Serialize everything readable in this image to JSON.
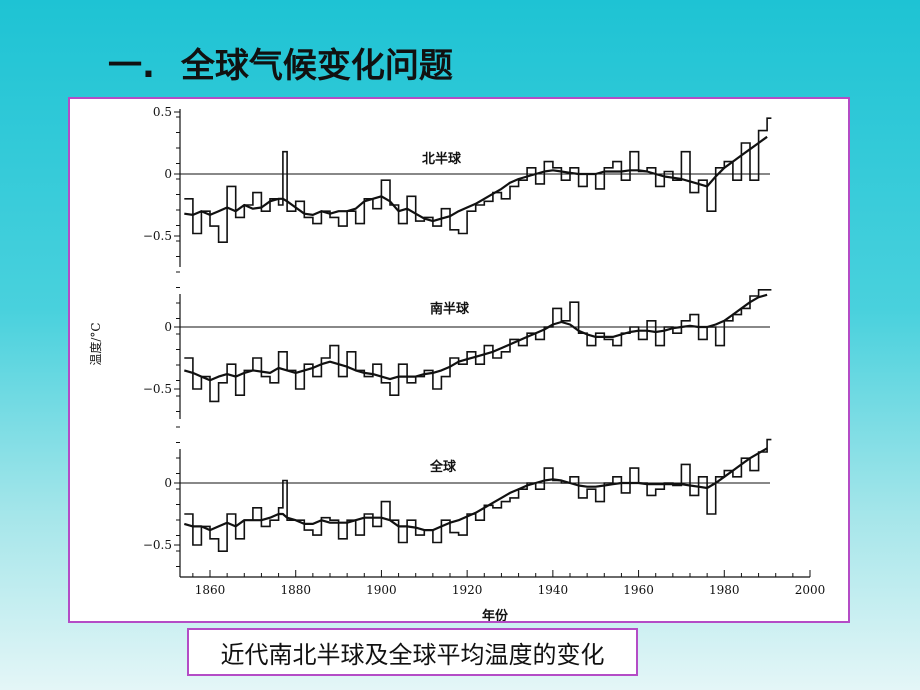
{
  "slide": {
    "title_number": "一.",
    "title_text": "全球气候变化问题",
    "caption": "近代南北半球及全球平均温度的变化"
  },
  "colors": {
    "background_top": "#1ec3d4",
    "frame_border": "#b44cc6",
    "ink": "#111111"
  },
  "chart_data": {
    "type": "line",
    "xlabel": "年份",
    "ylabel": "温度/°C",
    "xlim": [
      1853,
      2000
    ],
    "x_ticks": [
      "1860",
      "1880",
      "1900",
      "1920",
      "1940",
      "1960",
      "1980",
      "2000"
    ],
    "grid": false,
    "panels": [
      {
        "label": "北半球",
        "ylim": [
          -0.5,
          0.5
        ],
        "y_ticks": [
          "0.5",
          "0",
          "-0.5"
        ],
        "x": [
          1854,
          1856,
          1858,
          1860,
          1862,
          1864,
          1866,
          1868,
          1870,
          1872,
          1874,
          1876,
          1877,
          1878,
          1880,
          1882,
          1884,
          1886,
          1888,
          1890,
          1892,
          1894,
          1896,
          1898,
          1900,
          1902,
          1904,
          1906,
          1908,
          1910,
          1912,
          1914,
          1916,
          1918,
          1920,
          1922,
          1924,
          1926,
          1928,
          1930,
          1932,
          1934,
          1936,
          1938,
          1940,
          1942,
          1944,
          1946,
          1948,
          1950,
          1952,
          1954,
          1956,
          1958,
          1960,
          1962,
          1964,
          1966,
          1968,
          1970,
          1972,
          1974,
          1976,
          1978,
          1980,
          1982,
          1984,
          1986,
          1988,
          1990
        ],
        "annual": [
          -0.2,
          -0.48,
          -0.3,
          -0.42,
          -0.55,
          -0.1,
          -0.35,
          -0.25,
          -0.15,
          -0.3,
          -0.2,
          -0.25,
          0.18,
          -0.3,
          -0.22,
          -0.35,
          -0.4,
          -0.3,
          -0.35,
          -0.42,
          -0.3,
          -0.4,
          -0.2,
          -0.28,
          -0.05,
          -0.25,
          -0.4,
          -0.18,
          -0.38,
          -0.35,
          -0.42,
          -0.28,
          -0.45,
          -0.48,
          -0.3,
          -0.25,
          -0.22,
          -0.15,
          -0.2,
          -0.1,
          -0.05,
          0.05,
          -0.08,
          0.1,
          0.05,
          -0.05,
          0.05,
          -0.1,
          0.0,
          -0.12,
          0.05,
          0.1,
          -0.05,
          0.18,
          0.02,
          0.05,
          -0.1,
          0.02,
          -0.05,
          0.18,
          -0.15,
          -0.05,
          -0.3,
          0.05,
          0.1,
          -0.05,
          0.25,
          -0.05,
          0.35,
          0.45
        ],
        "smoothed": [
          -0.32,
          -0.33,
          -0.3,
          -0.33,
          -0.3,
          -0.27,
          -0.3,
          -0.25,
          -0.28,
          -0.27,
          -0.22,
          -0.2,
          -0.2,
          -0.22,
          -0.27,
          -0.32,
          -0.33,
          -0.3,
          -0.32,
          -0.3,
          -0.3,
          -0.28,
          -0.22,
          -0.2,
          -0.18,
          -0.22,
          -0.3,
          -0.28,
          -0.32,
          -0.36,
          -0.38,
          -0.36,
          -0.34,
          -0.3,
          -0.27,
          -0.24,
          -0.2,
          -0.16,
          -0.12,
          -0.07,
          -0.04,
          -0.02,
          0.0,
          0.02,
          0.03,
          0.02,
          0.01,
          0.0,
          0.0,
          0.0,
          0.02,
          0.02,
          0.02,
          0.03,
          0.03,
          0.02,
          0.0,
          -0.02,
          -0.03,
          -0.04,
          -0.06,
          -0.08,
          -0.1,
          -0.02,
          0.05,
          0.1,
          0.15,
          0.2,
          0.25,
          0.3
        ]
      },
      {
        "label": "南半球",
        "ylim": [
          -0.5,
          0.5
        ],
        "y_ticks": [
          "0",
          "-0.5"
        ],
        "x": [
          1854,
          1856,
          1858,
          1860,
          1862,
          1864,
          1866,
          1868,
          1870,
          1872,
          1874,
          1876,
          1878,
          1880,
          1882,
          1884,
          1886,
          1888,
          1890,
          1892,
          1894,
          1896,
          1898,
          1900,
          1902,
          1904,
          1906,
          1908,
          1910,
          1912,
          1914,
          1916,
          1918,
          1920,
          1922,
          1924,
          1926,
          1928,
          1930,
          1932,
          1934,
          1936,
          1938,
          1940,
          1942,
          1944,
          1946,
          1948,
          1950,
          1952,
          1954,
          1956,
          1958,
          1960,
          1962,
          1964,
          1966,
          1968,
          1970,
          1972,
          1974,
          1976,
          1978,
          1980,
          1982,
          1984,
          1986,
          1988,
          1990
        ],
        "annual": [
          -0.25,
          -0.5,
          -0.4,
          -0.6,
          -0.45,
          -0.3,
          -0.55,
          -0.35,
          -0.25,
          -0.4,
          -0.45,
          -0.2,
          -0.35,
          -0.5,
          -0.3,
          -0.4,
          -0.25,
          -0.15,
          -0.4,
          -0.2,
          -0.35,
          -0.4,
          -0.3,
          -0.45,
          -0.55,
          -0.3,
          -0.45,
          -0.4,
          -0.35,
          -0.5,
          -0.4,
          -0.25,
          -0.3,
          -0.2,
          -0.3,
          -0.15,
          -0.25,
          -0.2,
          -0.1,
          -0.15,
          -0.05,
          -0.1,
          0.0,
          0.15,
          0.05,
          0.2,
          -0.05,
          -0.15,
          -0.05,
          -0.1,
          -0.15,
          -0.05,
          0.0,
          -0.1,
          0.05,
          -0.15,
          0.0,
          -0.05,
          0.05,
          0.1,
          -0.1,
          0.0,
          -0.15,
          0.05,
          0.1,
          0.15,
          0.25,
          0.3,
          0.3
        ],
        "smoothed": [
          -0.35,
          -0.37,
          -0.4,
          -0.43,
          -0.4,
          -0.38,
          -0.4,
          -0.37,
          -0.35,
          -0.36,
          -0.37,
          -0.33,
          -0.35,
          -0.37,
          -0.35,
          -0.33,
          -0.3,
          -0.28,
          -0.3,
          -0.32,
          -0.35,
          -0.37,
          -0.38,
          -0.4,
          -0.42,
          -0.4,
          -0.4,
          -0.4,
          -0.38,
          -0.37,
          -0.35,
          -0.32,
          -0.28,
          -0.26,
          -0.24,
          -0.22,
          -0.2,
          -0.17,
          -0.14,
          -0.11,
          -0.08,
          -0.05,
          -0.02,
          0.02,
          0.04,
          0.02,
          -0.03,
          -0.06,
          -0.08,
          -0.08,
          -0.08,
          -0.06,
          -0.04,
          -0.03,
          -0.03,
          -0.04,
          -0.03,
          -0.01,
          0.0,
          0.01,
          0.0,
          0.0,
          0.02,
          0.05,
          0.1,
          0.15,
          0.2,
          0.24,
          0.26
        ]
      },
      {
        "label": "全球",
        "ylim": [
          -0.5,
          0.5
        ],
        "y_ticks": [
          "0",
          "-0.5"
        ],
        "x": [
          1854,
          1856,
          1858,
          1860,
          1862,
          1864,
          1866,
          1868,
          1870,
          1872,
          1874,
          1876,
          1877,
          1878,
          1880,
          1882,
          1884,
          1886,
          1888,
          1890,
          1892,
          1894,
          1896,
          1898,
          1900,
          1902,
          1904,
          1906,
          1908,
          1910,
          1912,
          1914,
          1916,
          1918,
          1920,
          1922,
          1924,
          1926,
          1928,
          1930,
          1932,
          1934,
          1936,
          1938,
          1940,
          1942,
          1944,
          1946,
          1948,
          1950,
          1952,
          1954,
          1956,
          1958,
          1960,
          1962,
          1964,
          1966,
          1968,
          1970,
          1972,
          1974,
          1976,
          1978,
          1980,
          1982,
          1984,
          1986,
          1988,
          1990
        ],
        "annual": [
          -0.25,
          -0.5,
          -0.35,
          -0.45,
          -0.55,
          -0.25,
          -0.45,
          -0.3,
          -0.2,
          -0.35,
          -0.3,
          -0.2,
          0.02,
          -0.3,
          -0.3,
          -0.38,
          -0.42,
          -0.28,
          -0.3,
          -0.45,
          -0.3,
          -0.42,
          -0.25,
          -0.35,
          -0.15,
          -0.3,
          -0.48,
          -0.3,
          -0.42,
          -0.38,
          -0.48,
          -0.3,
          -0.4,
          -0.42,
          -0.25,
          -0.3,
          -0.18,
          -0.2,
          -0.15,
          -0.12,
          -0.05,
          0.0,
          -0.05,
          0.12,
          0.02,
          0.0,
          0.05,
          -0.12,
          -0.05,
          -0.15,
          0.0,
          0.05,
          -0.08,
          0.12,
          0.0,
          -0.1,
          -0.05,
          0.0,
          -0.02,
          0.15,
          -0.1,
          0.05,
          -0.25,
          0.05,
          0.1,
          0.05,
          0.2,
          0.1,
          0.25,
          0.35
        ],
        "smoothed": [
          -0.33,
          -0.35,
          -0.35,
          -0.38,
          -0.35,
          -0.32,
          -0.35,
          -0.3,
          -0.3,
          -0.3,
          -0.28,
          -0.25,
          -0.25,
          -0.28,
          -0.3,
          -0.33,
          -0.33,
          -0.3,
          -0.32,
          -0.32,
          -0.32,
          -0.3,
          -0.28,
          -0.28,
          -0.28,
          -0.3,
          -0.35,
          -0.35,
          -0.36,
          -0.38,
          -0.38,
          -0.35,
          -0.32,
          -0.3,
          -0.27,
          -0.24,
          -0.2,
          -0.16,
          -0.12,
          -0.08,
          -0.05,
          -0.02,
          0.0,
          0.02,
          0.03,
          0.02,
          0.0,
          -0.02,
          -0.03,
          -0.03,
          -0.02,
          -0.01,
          0.0,
          0.0,
          0.0,
          -0.01,
          -0.01,
          -0.01,
          -0.01,
          -0.01,
          -0.02,
          -0.03,
          -0.04,
          0.0,
          0.05,
          0.1,
          0.15,
          0.2,
          0.24,
          0.28
        ]
      }
    ]
  }
}
